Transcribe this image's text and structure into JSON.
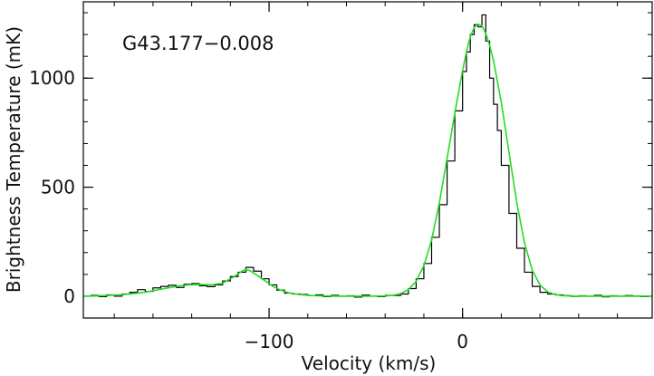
{
  "chart_data": {
    "type": "line",
    "annotation": "G43.177−0.008",
    "xlabel": "Velocity (km/s)",
    "ylabel": "Brightness Temperature (mK)",
    "xlim": [
      -196,
      98
    ],
    "ylim": [
      -100,
      1350
    ],
    "x_ticks": [
      {
        "value": -100,
        "label": "−100"
      },
      {
        "value": 0,
        "label": "0"
      }
    ],
    "y_ticks": [
      {
        "value": 0,
        "label": "0"
      },
      {
        "value": 500,
        "label": "500"
      },
      {
        "value": 1000,
        "label": "1000"
      }
    ],
    "minor_x_step": 20,
    "minor_y_step": 100,
    "series": [
      {
        "style": "steps",
        "color": "#000000",
        "x": [
          -196,
          -192,
          -188,
          -184,
          -180,
          -176,
          -172,
          -168,
          -164,
          -160,
          -156,
          -152,
          -148,
          -144,
          -140,
          -136,
          -132,
          -128,
          -124,
          -120,
          -116,
          -112,
          -108,
          -104,
          -100,
          -96,
          -92,
          -88,
          -84,
          -80,
          -76,
          -72,
          -68,
          -64,
          -60,
          -56,
          -52,
          -48,
          -44,
          -40,
          -36,
          -32,
          -28,
          -24,
          -20,
          -16,
          -12,
          -8,
          -4,
          0,
          2,
          4,
          6,
          8,
          10,
          12,
          14,
          16,
          18,
          20,
          24,
          28,
          32,
          36,
          40,
          44,
          48,
          52,
          56,
          60,
          64,
          68,
          72,
          76,
          80,
          84,
          88,
          92,
          96
        ],
        "y": [
          0,
          4,
          -2,
          6,
          0,
          10,
          18,
          30,
          22,
          38,
          45,
          50,
          40,
          55,
          58,
          48,
          44,
          52,
          70,
          90,
          110,
          132,
          115,
          80,
          52,
          28,
          14,
          10,
          8,
          3,
          6,
          -2,
          4,
          0,
          2,
          -4,
          5,
          0,
          -2,
          4,
          3,
          10,
          35,
          80,
          150,
          270,
          420,
          620,
          850,
          1030,
          1120,
          1200,
          1245,
          1235,
          1290,
          1170,
          1000,
          880,
          760,
          600,
          380,
          220,
          110,
          45,
          18,
          10,
          6,
          3,
          -1,
          2,
          0,
          4,
          -3,
          2,
          0,
          3,
          1,
          -2,
          0
        ]
      },
      {
        "style": "smooth",
        "color": "#22dd22",
        "x": [
          -196,
          -190,
          -184,
          -178,
          -172,
          -166,
          -160,
          -154,
          -148,
          -142,
          -136,
          -130,
          -124,
          -118,
          -114,
          -112,
          -110,
          -106,
          -102,
          -98,
          -94,
          -90,
          -84,
          -78,
          -72,
          -64,
          -56,
          -48,
          -40,
          -36,
          -32,
          -28,
          -24,
          -20,
          -16,
          -12,
          -8,
          -4,
          0,
          2,
          4,
          6,
          8,
          10,
          12,
          14,
          16,
          20,
          24,
          28,
          32,
          36,
          40,
          44,
          48,
          52,
          60,
          70,
          80,
          90,
          98
        ],
        "y": [
          0,
          1,
          3,
          6,
          10,
          16,
          25,
          35,
          45,
          52,
          54,
          52,
          60,
          90,
          115,
          122,
          118,
          95,
          70,
          45,
          28,
          16,
          7,
          3,
          1,
          0,
          0,
          0,
          1,
          4,
          12,
          30,
          68,
          140,
          258,
          428,
          632,
          840,
          1035,
          1120,
          1190,
          1232,
          1248,
          1240,
          1205,
          1150,
          1080,
          890,
          660,
          430,
          245,
          120,
          52,
          20,
          7,
          2,
          0,
          0,
          0,
          0,
          0
        ]
      }
    ]
  }
}
